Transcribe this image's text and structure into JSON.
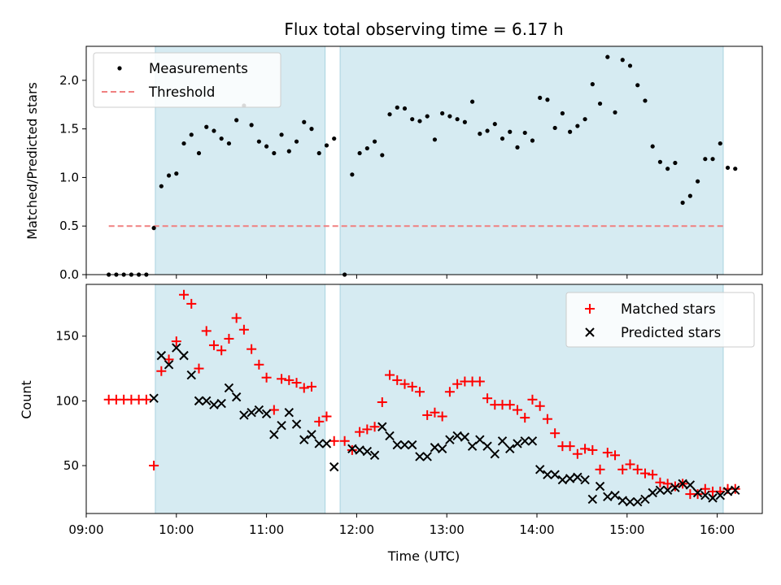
{
  "chart_data": [
    {
      "type": "scatter",
      "title": "Flux total observing time = 6.17 h",
      "xlabel": "",
      "ylabel": "Matched/Predicted stars",
      "x_axis": "time",
      "xlim": [
        "09:00",
        "16:30"
      ],
      "ylim": [
        0,
        2.35
      ],
      "y_ticks": [
        0.0,
        0.5,
        1.0,
        1.5,
        2.0
      ],
      "y_tick_labels": [
        "0.0",
        "0.5",
        "1.0",
        "1.5",
        "2.0"
      ],
      "legend_position": "top-left",
      "shaded_intervals": [
        [
          "09:46",
          "11:39"
        ],
        [
          "11:49",
          "16:04"
        ]
      ],
      "threshold": {
        "name": "Threshold",
        "value": 0.5,
        "x_range": [
          "09:15",
          "16:04"
        ],
        "color": "#f08080",
        "style": "dashed"
      },
      "series": [
        {
          "name": "Measurements",
          "marker": "dot",
          "color": "#000000",
          "points": [
            [
              "09:15",
              0
            ],
            [
              "09:20",
              0
            ],
            [
              "09:25",
              0
            ],
            [
              "09:30",
              0
            ],
            [
              "09:35",
              0
            ],
            [
              "09:40",
              0
            ],
            [
              "09:45",
              0.48
            ],
            [
              "09:50",
              0.91
            ],
            [
              "09:55",
              1.02
            ],
            [
              "10:00",
              1.04
            ],
            [
              "10:05",
              1.35
            ],
            [
              "10:10",
              1.44
            ],
            [
              "10:15",
              1.25
            ],
            [
              "10:20",
              1.52
            ],
            [
              "10:25",
              1.48
            ],
            [
              "10:30",
              1.4
            ],
            [
              "10:35",
              1.35
            ],
            [
              "10:40",
              1.59
            ],
            [
              "10:45",
              1.74
            ],
            [
              "10:50",
              1.54
            ],
            [
              "10:55",
              1.37
            ],
            [
              "11:00",
              1.32
            ],
            [
              "11:05",
              1.25
            ],
            [
              "11:10",
              1.44
            ],
            [
              "11:15",
              1.27
            ],
            [
              "11:20",
              1.37
            ],
            [
              "11:25",
              1.57
            ],
            [
              "11:30",
              1.5
            ],
            [
              "11:35",
              1.25
            ],
            [
              "11:40",
              1.33
            ],
            [
              "11:45",
              1.4
            ],
            [
              "11:52",
              0
            ],
            [
              "11:57",
              1.03
            ],
            [
              "12:02",
              1.25
            ],
            [
              "12:07",
              1.3
            ],
            [
              "12:12",
              1.37
            ],
            [
              "12:17",
              1.23
            ],
            [
              "12:22",
              1.65
            ],
            [
              "12:27",
              1.72
            ],
            [
              "12:32",
              1.71
            ],
            [
              "12:37",
              1.6
            ],
            [
              "12:42",
              1.58
            ],
            [
              "12:47",
              1.63
            ],
            [
              "12:52",
              1.39
            ],
            [
              "12:57",
              1.66
            ],
            [
              "13:02",
              1.63
            ],
            [
              "13:07",
              1.6
            ],
            [
              "13:12",
              1.57
            ],
            [
              "13:17",
              1.78
            ],
            [
              "13:22",
              1.45
            ],
            [
              "13:27",
              1.48
            ],
            [
              "13:32",
              1.55
            ],
            [
              "13:37",
              1.4
            ],
            [
              "13:42",
              1.47
            ],
            [
              "13:47",
              1.31
            ],
            [
              "13:52",
              1.46
            ],
            [
              "13:57",
              1.38
            ],
            [
              "14:02",
              1.82
            ],
            [
              "14:07",
              1.8
            ],
            [
              "14:12",
              1.51
            ],
            [
              "14:17",
              1.66
            ],
            [
              "14:22",
              1.47
            ],
            [
              "14:27",
              1.53
            ],
            [
              "14:32",
              1.6
            ],
            [
              "14:37",
              1.96
            ],
            [
              "14:42",
              1.76
            ],
            [
              "14:47",
              2.24
            ],
            [
              "14:52",
              1.67
            ],
            [
              "14:57",
              2.21
            ],
            [
              "15:02",
              2.15
            ],
            [
              "15:07",
              1.95
            ],
            [
              "15:12",
              1.79
            ],
            [
              "15:17",
              1.32
            ],
            [
              "15:22",
              1.16
            ],
            [
              "15:27",
              1.09
            ],
            [
              "15:32",
              1.15
            ],
            [
              "15:37",
              0.74
            ],
            [
              "15:42",
              0.81
            ],
            [
              "15:47",
              0.96
            ],
            [
              "15:52",
              1.19
            ],
            [
              "15:57",
              1.19
            ],
            [
              "16:02",
              1.35
            ],
            [
              "16:07",
              1.1
            ],
            [
              "16:12",
              1.09
            ]
          ]
        }
      ]
    },
    {
      "type": "scatter",
      "title": "",
      "xlabel": "Time (UTC)",
      "ylabel": "Count",
      "x_axis": "time",
      "xlim": [
        "09:00",
        "16:30"
      ],
      "ylim": [
        13,
        190
      ],
      "y_ticks": [
        50,
        100,
        150
      ],
      "y_tick_labels": [
        "50",
        "100",
        "150"
      ],
      "x_ticks": [
        "09:00",
        "10:00",
        "11:00",
        "12:00",
        "13:00",
        "14:00",
        "15:00",
        "16:00"
      ],
      "x_tick_labels": [
        "09:00",
        "10:00",
        "11:00",
        "12:00",
        "13:00",
        "14:00",
        "15:00",
        "16:00"
      ],
      "legend_position": "top-right",
      "shaded_intervals": [
        [
          "09:46",
          "11:39"
        ],
        [
          "11:49",
          "16:04"
        ]
      ],
      "series": [
        {
          "name": "Matched stars",
          "marker": "plus",
          "color": "#ff0000",
          "points": [
            [
              "09:15",
              101
            ],
            [
              "09:20",
              101
            ],
            [
              "09:25",
              101
            ],
            [
              "09:30",
              101
            ],
            [
              "09:35",
              101
            ],
            [
              "09:40",
              101
            ],
            [
              "09:45",
              50
            ],
            [
              "09:50",
              123
            ],
            [
              "09:55",
              132
            ],
            [
              "10:00",
              146
            ],
            [
              "10:05",
              182
            ],
            [
              "10:10",
              175
            ],
            [
              "10:15",
              125
            ],
            [
              "10:20",
              154
            ],
            [
              "10:25",
              143
            ],
            [
              "10:30",
              139
            ],
            [
              "10:35",
              148
            ],
            [
              "10:40",
              164
            ],
            [
              "10:45",
              155
            ],
            [
              "10:50",
              140
            ],
            [
              "10:55",
              128
            ],
            [
              "11:00",
              118
            ],
            [
              "11:05",
              93
            ],
            [
              "11:10",
              117
            ],
            [
              "11:15",
              116
            ],
            [
              "11:20",
              114
            ],
            [
              "11:25",
              110
            ],
            [
              "11:30",
              111
            ],
            [
              "11:35",
              84
            ],
            [
              "11:40",
              88
            ],
            [
              "11:45",
              69
            ],
            [
              "11:52",
              69
            ],
            [
              "11:57",
              62
            ],
            [
              "12:02",
              76
            ],
            [
              "12:07",
              78
            ],
            [
              "12:12",
              80
            ],
            [
              "12:17",
              99
            ],
            [
              "12:22",
              120
            ],
            [
              "12:27",
              116
            ],
            [
              "12:32",
              113
            ],
            [
              "12:37",
              111
            ],
            [
              "12:42",
              107
            ],
            [
              "12:47",
              89
            ],
            [
              "12:52",
              91
            ],
            [
              "12:57",
              88
            ],
            [
              "13:02",
              107
            ],
            [
              "13:07",
              113
            ],
            [
              "13:12",
              115
            ],
            [
              "13:17",
              115
            ],
            [
              "13:22",
              115
            ],
            [
              "13:27",
              102
            ],
            [
              "13:32",
              97
            ],
            [
              "13:37",
              97
            ],
            [
              "13:42",
              97
            ],
            [
              "13:47",
              93
            ],
            [
              "13:52",
              87
            ],
            [
              "13:57",
              101
            ],
            [
              "14:02",
              96
            ],
            [
              "14:07",
              86
            ],
            [
              "14:12",
              75
            ],
            [
              "14:17",
              65
            ],
            [
              "14:22",
              65
            ],
            [
              "14:27",
              59
            ],
            [
              "14:32",
              63
            ],
            [
              "14:37",
              62
            ],
            [
              "14:42",
              47
            ],
            [
              "14:47",
              60
            ],
            [
              "14:52",
              58
            ],
            [
              "14:57",
              47
            ],
            [
              "15:02",
              51
            ],
            [
              "15:07",
              47
            ],
            [
              "15:12",
              44
            ],
            [
              "15:17",
              43
            ],
            [
              "15:22",
              37
            ],
            [
              "15:27",
              36
            ],
            [
              "15:32",
              34
            ],
            [
              "15:37",
              36
            ],
            [
              "15:42",
              28
            ],
            [
              "15:47",
              28
            ],
            [
              "15:52",
              32
            ],
            [
              "15:57",
              30
            ],
            [
              "16:02",
              30
            ],
            [
              "16:07",
              32
            ],
            [
              "16:12",
              32
            ]
          ]
        },
        {
          "name": "Predicted stars",
          "marker": "x",
          "color": "#000000",
          "points": [
            [
              "09:45",
              102
            ],
            [
              "09:50",
              135
            ],
            [
              "09:55",
              128
            ],
            [
              "10:00",
              141
            ],
            [
              "10:05",
              135
            ],
            [
              "10:10",
              120
            ],
            [
              "10:15",
              100
            ],
            [
              "10:20",
              100
            ],
            [
              "10:25",
              97
            ],
            [
              "10:30",
              98
            ],
            [
              "10:35",
              110
            ],
            [
              "10:40",
              103
            ],
            [
              "10:45",
              89
            ],
            [
              "10:50",
              91
            ],
            [
              "10:55",
              93
            ],
            [
              "11:00",
              90
            ],
            [
              "11:05",
              74
            ],
            [
              "11:10",
              81
            ],
            [
              "11:15",
              91
            ],
            [
              "11:20",
              82
            ],
            [
              "11:25",
              70
            ],
            [
              "11:30",
              74
            ],
            [
              "11:35",
              67
            ],
            [
              "11:40",
              67
            ],
            [
              "11:45",
              49
            ],
            [
              "11:57",
              63
            ],
            [
              "12:02",
              62
            ],
            [
              "12:07",
              61
            ],
            [
              "12:12",
              58
            ],
            [
              "12:17",
              80
            ],
            [
              "12:22",
              73
            ],
            [
              "12:27",
              66
            ],
            [
              "12:32",
              66
            ],
            [
              "12:37",
              66
            ],
            [
              "12:42",
              57
            ],
            [
              "12:47",
              57
            ],
            [
              "12:52",
              64
            ],
            [
              "12:57",
              63
            ],
            [
              "13:02",
              70
            ],
            [
              "13:07",
              73
            ],
            [
              "13:12",
              72
            ],
            [
              "13:17",
              65
            ],
            [
              "13:22",
              70
            ],
            [
              "13:27",
              65
            ],
            [
              "13:32",
              59
            ],
            [
              "13:37",
              69
            ],
            [
              "13:42",
              63
            ],
            [
              "13:47",
              67
            ],
            [
              "13:52",
              69
            ],
            [
              "13:57",
              69
            ],
            [
              "14:02",
              47
            ],
            [
              "14:07",
              43
            ],
            [
              "14:12",
              43
            ],
            [
              "14:17",
              39
            ],
            [
              "14:22",
              40
            ],
            [
              "14:27",
              41
            ],
            [
              "14:32",
              39
            ],
            [
              "14:37",
              24
            ],
            [
              "14:42",
              34
            ],
            [
              "14:47",
              26
            ],
            [
              "14:52",
              27
            ],
            [
              "14:57",
              23
            ],
            [
              "15:02",
              22
            ],
            [
              "15:07",
              22
            ],
            [
              "15:12",
              24
            ],
            [
              "15:17",
              29
            ],
            [
              "15:22",
              31
            ],
            [
              "15:27",
              31
            ],
            [
              "15:32",
              33
            ],
            [
              "15:37",
              36
            ],
            [
              "15:42",
              35
            ],
            [
              "15:47",
              29
            ],
            [
              "15:52",
              27
            ],
            [
              "15:57",
              25
            ],
            [
              "16:02",
              27
            ],
            [
              "16:07",
              30
            ],
            [
              "16:12",
              31
            ]
          ]
        }
      ]
    }
  ]
}
